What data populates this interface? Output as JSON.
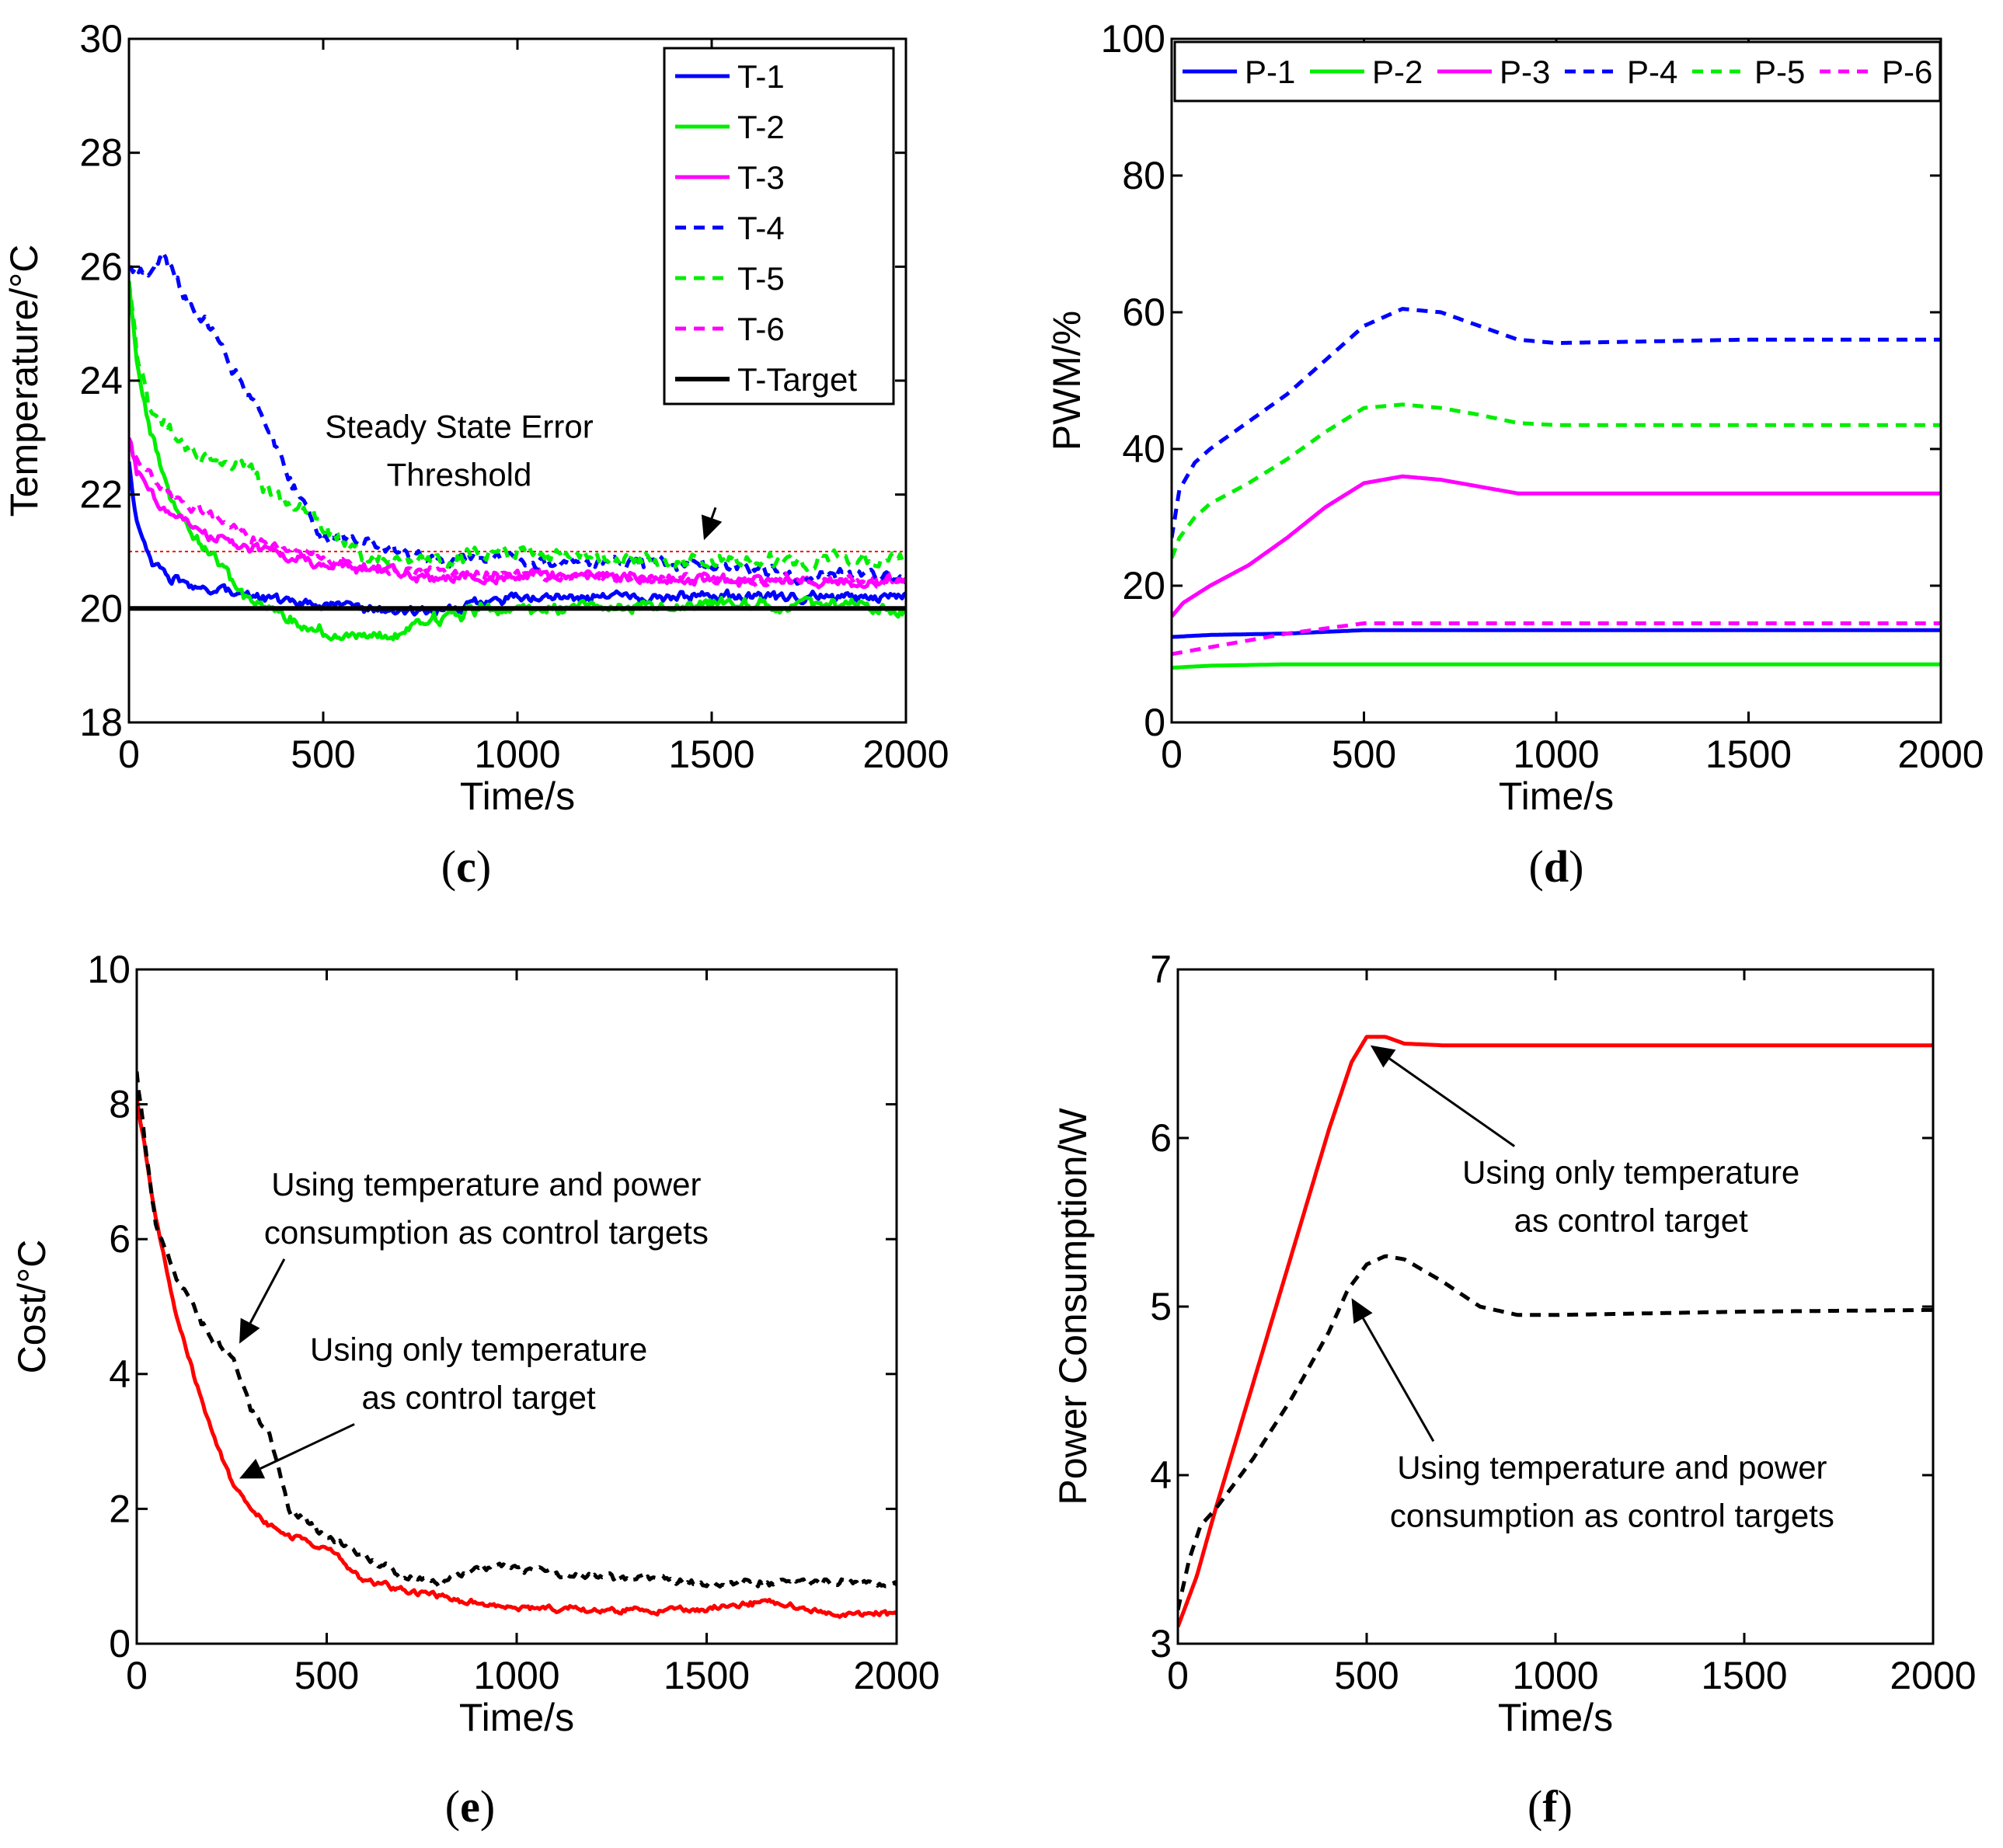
{
  "chart_data": [
    {
      "id": "c",
      "type": "line",
      "panel_label": "c",
      "xlabel": "Time/s",
      "ylabel": "Temperature/°C",
      "xlim": [
        0,
        2000
      ],
      "ylim": [
        18,
        30
      ],
      "xticks": [
        0,
        500,
        1000,
        1500,
        2000
      ],
      "yticks": [
        18,
        20,
        22,
        24,
        26,
        28,
        30
      ],
      "legend": "top-right",
      "reference_lines": [
        {
          "name": "Steady State Error Threshold",
          "y": 21,
          "color": "#ff0000",
          "dash": "dotted"
        }
      ],
      "series": [
        {
          "name": "T-1",
          "color": "#0000ff",
          "dash": "solid",
          "noise": 0.08,
          "x": [
            0,
            20,
            60,
            100,
            200,
            300,
            400,
            500,
            600,
            800,
            1000,
            1500,
            2000
          ],
          "y": [
            22.6,
            21.5,
            20.8,
            20.5,
            20.3,
            20.3,
            20.1,
            20.1,
            20.0,
            19.95,
            20.2,
            20.2,
            20.2
          ]
        },
        {
          "name": "T-2",
          "color": "#00ee00",
          "dash": "solid",
          "noise": 0.1,
          "x": [
            0,
            20,
            60,
            100,
            150,
            200,
            250,
            300,
            400,
            450,
            500,
            600,
            700,
            800,
            900,
            1000,
            1200,
            1500,
            2000
          ],
          "y": [
            25.8,
            24.3,
            23.0,
            22.0,
            21.5,
            21.0,
            20.6,
            20.2,
            19.9,
            19.7,
            19.6,
            19.45,
            19.6,
            19.8,
            20.0,
            20.0,
            20.0,
            20.1,
            20.0
          ]
        },
        {
          "name": "T-3",
          "color": "#ff00ff",
          "dash": "solid",
          "noise": 0.08,
          "x": [
            0,
            20,
            60,
            100,
            200,
            300,
            400,
            500,
            600,
            800,
            1000,
            1500,
            2000
          ],
          "y": [
            23.0,
            22.4,
            22.0,
            21.7,
            21.3,
            21.1,
            20.9,
            20.8,
            20.7,
            20.5,
            20.6,
            20.5,
            20.5
          ]
        },
        {
          "name": "T-4",
          "color": "#0000ff",
          "dash": "dotted",
          "noise": 0.1,
          "x": [
            0,
            50,
            90,
            150,
            220,
            260,
            300,
            330,
            380,
            420,
            460,
            500,
            600,
            700,
            800,
            900,
            1000,
            1200,
            1500,
            1700,
            2000
          ],
          "y": [
            26.0,
            25.9,
            26.2,
            25.4,
            24.9,
            24.3,
            23.8,
            23.5,
            22.8,
            22.2,
            21.7,
            21.3,
            21.2,
            21.0,
            20.8,
            20.9,
            20.8,
            20.8,
            20.8,
            20.6,
            20.6
          ]
        },
        {
          "name": "T-5",
          "color": "#00ee00",
          "dash": "dotted",
          "noise": 0.12,
          "x": [
            0,
            20,
            50,
            100,
            150,
            200,
            250,
            300,
            350,
            400,
            450,
            500,
            600,
            700,
            800,
            900,
            1000,
            1200,
            1500,
            2000
          ],
          "y": [
            25.8,
            24.5,
            23.6,
            23.2,
            22.8,
            22.6,
            22.5,
            22.6,
            22.1,
            21.9,
            21.7,
            21.4,
            21.0,
            20.8,
            20.8,
            21.0,
            21.0,
            20.9,
            20.8,
            20.9
          ]
        },
        {
          "name": "T-6",
          "color": "#ff00ff",
          "dash": "dotted",
          "noise": 0.08,
          "x": [
            0,
            20,
            60,
            100,
            150,
            200,
            300,
            400,
            500,
            600,
            800,
            1000,
            1500,
            2000
          ],
          "y": [
            23.0,
            22.6,
            22.3,
            22.0,
            21.8,
            21.7,
            21.3,
            21.0,
            20.9,
            20.7,
            20.6,
            20.6,
            20.5,
            20.5
          ]
        },
        {
          "name": "T-Target",
          "color": "#000000",
          "dash": "solid",
          "width": 6,
          "x": [
            0,
            2000
          ],
          "y": [
            20.0,
            20.0
          ]
        }
      ],
      "annotations": [
        {
          "lines": [
            "Steady State Error",
            "Threshold"
          ],
          "at": [
            850,
            23.0
          ],
          "arrow_to": [
            1480,
            21.2
          ]
        }
      ]
    },
    {
      "id": "d",
      "type": "line",
      "panel_label": "d",
      "xlabel": "Time/s",
      "ylabel": "PWM/%",
      "xlim": [
        0,
        2000
      ],
      "ylim": [
        0,
        100
      ],
      "xticks": [
        0,
        500,
        1000,
        1500,
        2000
      ],
      "yticks": [
        0,
        20,
        40,
        60,
        80,
        100
      ],
      "legend": "top",
      "series": [
        {
          "name": "P-1",
          "color": "#0000ff",
          "dash": "solid",
          "x": [
            0,
            100,
            300,
            500,
            800,
            1000,
            1500,
            2000
          ],
          "y": [
            12.5,
            12.8,
            13.0,
            13.5,
            13.5,
            13.5,
            13.5,
            13.5
          ]
        },
        {
          "name": "P-2",
          "color": "#00ee00",
          "dash": "solid",
          "x": [
            0,
            100,
            300,
            500,
            1000,
            1500,
            2000
          ],
          "y": [
            8.0,
            8.3,
            8.5,
            8.5,
            8.5,
            8.5,
            8.5
          ]
        },
        {
          "name": "P-3",
          "color": "#ff00ff",
          "dash": "solid",
          "x": [
            0,
            30,
            100,
            200,
            300,
            400,
            500,
            600,
            700,
            800,
            900,
            1000,
            1500,
            2000
          ],
          "y": [
            15.5,
            17.5,
            20.0,
            23.0,
            27.0,
            31.5,
            35.0,
            36.0,
            35.5,
            34.5,
            33.5,
            33.5,
            33.5,
            33.5
          ]
        },
        {
          "name": "P-4",
          "color": "#0000ff",
          "dash": "dotted",
          "x": [
            0,
            20,
            60,
            100,
            200,
            300,
            400,
            500,
            600,
            700,
            800,
            900,
            1000,
            1500,
            2000
          ],
          "y": [
            27.0,
            34.0,
            38.0,
            40.0,
            44.0,
            48.0,
            53.0,
            58.0,
            60.5,
            60.0,
            58.0,
            56.0,
            55.5,
            56.0,
            56.0
          ]
        },
        {
          "name": "P-5",
          "color": "#00ee00",
          "dash": "dotted",
          "x": [
            0,
            20,
            60,
            100,
            200,
            300,
            400,
            500,
            600,
            700,
            800,
            900,
            1000,
            1500,
            2000
          ],
          "y": [
            24.0,
            27.0,
            30.0,
            32.0,
            35.0,
            38.5,
            42.5,
            46.0,
            46.5,
            46.0,
            45.0,
            43.8,
            43.5,
            43.5,
            43.5
          ]
        },
        {
          "name": "P-6",
          "color": "#ff00ff",
          "dash": "dotted",
          "x": [
            0,
            100,
            300,
            500,
            800,
            1000,
            1500,
            2000
          ],
          "y": [
            10.0,
            11.0,
            13.0,
            14.5,
            14.5,
            14.5,
            14.5,
            14.5
          ]
        }
      ]
    },
    {
      "id": "e",
      "type": "line",
      "panel_label": "e",
      "xlabel": "Time/s",
      "ylabel": "Cost/°C",
      "xlim": [
        0,
        2000
      ],
      "ylim": [
        0,
        10
      ],
      "xticks": [
        0,
        500,
        1000,
        1500,
        2000
      ],
      "yticks": [
        0,
        2,
        4,
        6,
        8,
        10
      ],
      "series": [
        {
          "name": "Using only temperature as control target",
          "color": "#ff0000",
          "dash": "solid",
          "noise": 0.04,
          "x": [
            0,
            20,
            50,
            100,
            150,
            200,
            250,
            300,
            350,
            400,
            500,
            600,
            700,
            800,
            900,
            1000,
            1200,
            1500,
            1600,
            1700,
            1800,
            2000
          ],
          "y": [
            8.1,
            7.4,
            6.3,
            5.0,
            4.0,
            3.1,
            2.4,
            2.0,
            1.75,
            1.6,
            1.4,
            0.95,
            0.8,
            0.7,
            0.6,
            0.55,
            0.5,
            0.5,
            0.6,
            0.6,
            0.45,
            0.45
          ]
        },
        {
          "name": "Using temperature and power consumption as control targets",
          "color": "#000000",
          "dash": "dotted",
          "noise": 0.05,
          "x": [
            0,
            20,
            50,
            100,
            150,
            200,
            250,
            300,
            350,
            400,
            450,
            500,
            600,
            700,
            800,
            900,
            950,
            1000,
            1200,
            1500,
            2000
          ],
          "y": [
            8.5,
            7.5,
            6.2,
            5.5,
            5.0,
            4.5,
            4.3,
            3.5,
            3.1,
            2.0,
            1.8,
            1.6,
            1.3,
            1.0,
            0.9,
            1.1,
            1.15,
            1.1,
            1.0,
            0.9,
            0.9
          ]
        }
      ],
      "annotations": [
        {
          "lines": [
            "Using temperature and power",
            "consumption as control targets"
          ],
          "at": [
            920,
            6.65
          ],
          "arrow_to": [
            270,
            4.45
          ]
        },
        {
          "lines": [
            "Using only temperature",
            "as control target"
          ],
          "at": [
            900,
            4.2
          ],
          "arrow_to": [
            270,
            2.45
          ]
        }
      ]
    },
    {
      "id": "f",
      "type": "line",
      "panel_label": "f",
      "xlabel": "Time/s",
      "ylabel": "Power Consumption/W",
      "xlim": [
        0,
        2000
      ],
      "ylim": [
        3,
        7
      ],
      "xticks": [
        0,
        500,
        1000,
        1500,
        2000
      ],
      "yticks": [
        3,
        4,
        5,
        6,
        7
      ],
      "series": [
        {
          "name": "Using only temperature as control target",
          "color": "#ff0000",
          "dash": "solid",
          "x": [
            0,
            50,
            100,
            200,
            300,
            400,
            460,
            500,
            550,
            600,
            700,
            1000,
            1500,
            2000
          ],
          "y": [
            3.1,
            3.4,
            3.8,
            4.55,
            5.3,
            6.05,
            6.45,
            6.6,
            6.6,
            6.56,
            6.55,
            6.55,
            6.55,
            6.55
          ]
        },
        {
          "name": "Using temperature and power consumption as control targets",
          "color": "#000000",
          "dash": "dotted",
          "x": [
            0,
            30,
            60,
            100,
            150,
            200,
            300,
            400,
            450,
            500,
            550,
            600,
            700,
            800,
            900,
            1000,
            1500,
            2000
          ],
          "y": [
            3.2,
            3.5,
            3.7,
            3.8,
            3.95,
            4.1,
            4.45,
            4.85,
            5.1,
            5.25,
            5.3,
            5.28,
            5.15,
            5.0,
            4.95,
            4.95,
            4.97,
            4.98
          ]
        }
      ],
      "annotations": [
        {
          "lines": [
            "Using only temperature",
            "as control target"
          ],
          "at": [
            1200,
            5.73
          ],
          "arrow_to": [
            510,
            6.55
          ]
        },
        {
          "lines": [
            "Using temperature and power",
            "consumption as control targets"
          ],
          "at": [
            1150,
            3.98
          ],
          "arrow_to": [
            460,
            5.05
          ]
        }
      ]
    }
  ]
}
